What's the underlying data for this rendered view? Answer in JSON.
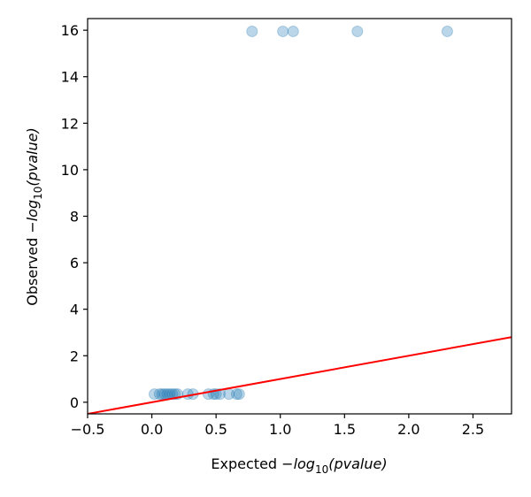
{
  "chart_data": {
    "type": "scatter",
    "xlabel": {
      "prefix": "Expected ",
      "minus": "−",
      "log": "log",
      "base": "10",
      "arg": "(pvalue)"
    },
    "ylabel": {
      "prefix": "Observed ",
      "minus": "−",
      "log": "log",
      "base": "10",
      "arg": "(pvalue)"
    },
    "xlim": [
      -0.5,
      2.8
    ],
    "ylim": [
      -0.5,
      16.5
    ],
    "xticks": [
      -0.5,
      0.0,
      0.5,
      1.0,
      1.5,
      2.0,
      2.5
    ],
    "xtick_labels": [
      "−0.5",
      "0.0",
      "0.5",
      "1.0",
      "1.5",
      "2.0",
      "2.5"
    ],
    "yticks": [
      0,
      2,
      4,
      6,
      8,
      10,
      12,
      14,
      16
    ],
    "ytick_labels": [
      "0",
      "2",
      "4",
      "6",
      "8",
      "10",
      "12",
      "14",
      "16"
    ],
    "grid": false,
    "colors": {
      "points": "#1f77b4",
      "reference_line": "#ff0000"
    },
    "series": [
      {
        "x": [
          0.02,
          0.06,
          0.08,
          0.1,
          0.12,
          0.14,
          0.16,
          0.18,
          0.2,
          0.28,
          0.32,
          0.44,
          0.48,
          0.5,
          0.53,
          0.6,
          0.66,
          0.68,
          0.78,
          1.02,
          1.1,
          1.6,
          2.3
        ],
        "y": [
          0.35,
          0.35,
          0.35,
          0.35,
          0.35,
          0.35,
          0.35,
          0.35,
          0.35,
          0.35,
          0.35,
          0.35,
          0.35,
          0.35,
          0.35,
          0.35,
          0.35,
          0.35,
          15.95,
          15.95,
          15.95,
          15.95,
          15.95
        ]
      }
    ],
    "reference_line": {
      "x": [
        -0.5,
        2.8
      ],
      "y": [
        -0.5,
        2.8
      ]
    }
  }
}
